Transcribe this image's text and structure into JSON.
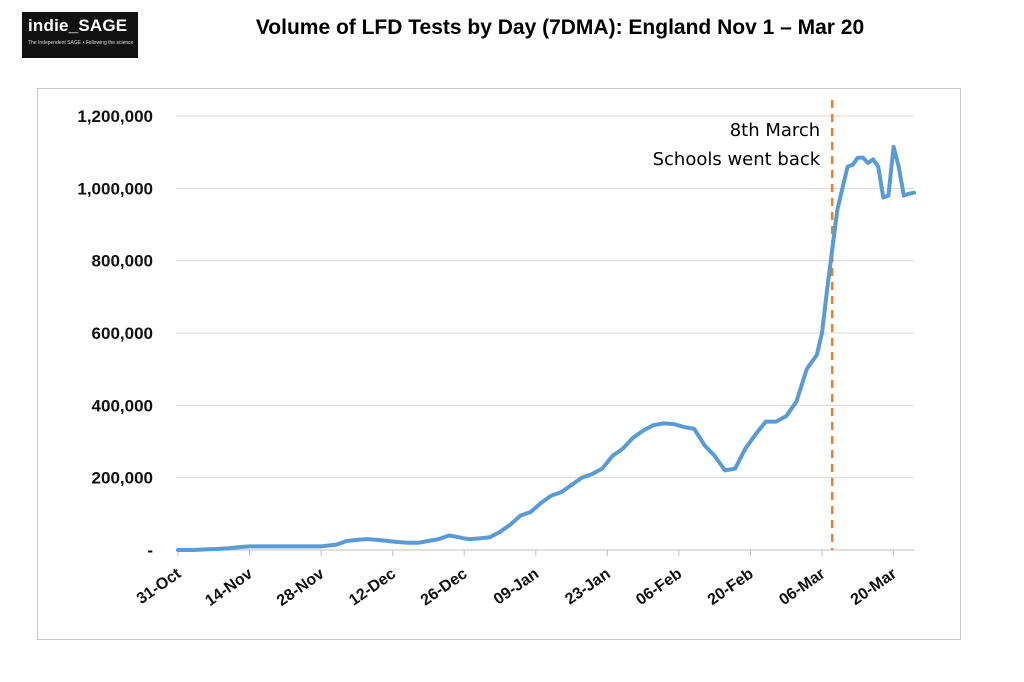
{
  "logo": {
    "name": "indie_SAGE",
    "tagline": "The Independent SAGE • Following the science"
  },
  "chart_data": {
    "type": "line",
    "title": "Volume of LFD Tests by Day (7DMA): England Nov 1 – Mar 20",
    "xlabel": "",
    "ylabel": "",
    "x_start": "31-Oct",
    "x_end": "24-Mar",
    "ylim": [
      0,
      1200000
    ],
    "yticks": [
      0,
      200000,
      400000,
      600000,
      800000,
      1000000,
      1200000
    ],
    "ytick_labels": [
      "-",
      "200,000",
      "400,000",
      "600,000",
      "800,000",
      "1,000,000",
      "1,200,000"
    ],
    "xticks": [
      "31-Oct",
      "14-Nov",
      "28-Nov",
      "12-Dec",
      "26-Dec",
      "09-Jan",
      "23-Jan",
      "06-Feb",
      "20-Feb",
      "06-Mar",
      "20-Mar"
    ],
    "grid": true,
    "line_color": "#5b9bd5",
    "series": [
      {
        "x": [
          "31-Oct",
          "3-Nov",
          "6-Nov",
          "8-Nov",
          "10-Nov",
          "12-Nov",
          "14-Nov",
          "17-Nov",
          "21-Nov",
          "24-Nov",
          "28-Nov",
          "1-Dec",
          "3-Dec",
          "5-Dec",
          "7-Dec",
          "9-Dec",
          "11-Dec",
          "13-Dec",
          "15-Dec",
          "17-Dec",
          "19-Dec",
          "21-Dec",
          "23-Dec",
          "25-Dec",
          "26-Dec",
          "27-Dec",
          "29-Dec",
          "31-Dec",
          "2-Jan",
          "4-Jan",
          "6-Jan",
          "8-Jan",
          "10-Jan",
          "12-Jan",
          "14-Jan",
          "16-Jan",
          "18-Jan",
          "20-Jan",
          "22-Jan",
          "24-Jan",
          "26-Jan",
          "28-Jan",
          "30-Jan",
          "1-Feb",
          "3-Feb",
          "5-Feb",
          "7-Feb",
          "9-Feb",
          "11-Feb",
          "13-Feb",
          "15-Feb",
          "17-Feb",
          "19-Feb",
          "21-Feb",
          "23-Feb",
          "25-Feb",
          "27-Feb",
          "1-Mar",
          "3-Mar",
          "5-Mar",
          "6-Mar",
          "7-Mar",
          "8-Mar",
          "9-Mar",
          "10-Mar",
          "11-Mar",
          "12-Mar",
          "13-Mar",
          "14-Mar",
          "15-Mar",
          "16-Mar",
          "17-Mar",
          "18-Mar",
          "19-Mar",
          "20-Mar",
          "21-Mar",
          "22-Mar",
          "23-Mar",
          "24-Mar"
        ],
        "values": [
          0,
          0,
          2000,
          3000,
          5000,
          8000,
          10000,
          10000,
          10000,
          10000,
          10000,
          15000,
          25000,
          28000,
          30000,
          28000,
          25000,
          22000,
          20000,
          20000,
          25000,
          30000,
          40000,
          35000,
          32000,
          30000,
          32000,
          35000,
          50000,
          70000,
          95000,
          105000,
          130000,
          150000,
          160000,
          180000,
          200000,
          210000,
          225000,
          260000,
          280000,
          310000,
          330000,
          345000,
          350000,
          348000,
          340000,
          335000,
          290000,
          260000,
          220000,
          225000,
          280000,
          320000,
          355000,
          355000,
          370000,
          410000,
          500000,
          540000,
          600000,
          720000,
          830000,
          940000,
          1000000,
          1060000,
          1065000,
          1085000,
          1085000,
          1070000,
          1080000,
          1060000,
          975000,
          980000,
          1115000,
          1060000,
          980000,
          985000,
          988000
        ]
      }
    ],
    "annotations": [
      {
        "x": "8-Mar",
        "text_lines": [
          "8th March",
          "Schools went back"
        ],
        "style": "dashed-vertical-line",
        "color": "#ed7d31"
      }
    ]
  }
}
